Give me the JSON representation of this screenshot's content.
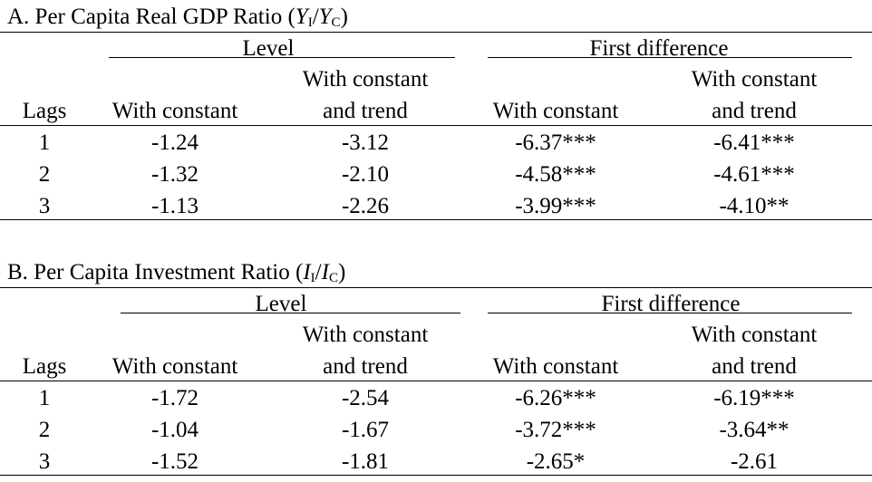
{
  "panels": [
    {
      "title_prefix": "A. Per Capita Real GDP Ratio (",
      "ratio_num": "Y",
      "ratio_num_sub": "I",
      "ratio_den": "Y",
      "ratio_den_sub": "C",
      "title_suffix": ")",
      "group_level": "Level",
      "group_first_diff": "First difference",
      "col_lags": "Lags",
      "col_with_constant": "With constant",
      "col_with_constant_and_trend_line1": "With constant",
      "col_with_constant_and_trend_line2": "and trend",
      "rows": [
        {
          "lag": "1",
          "level_c": "-1.24",
          "level_ct": "-3.12",
          "fd_c": "-6.37***",
          "fd_ct": "-6.41***"
        },
        {
          "lag": "2",
          "level_c": "-1.32",
          "level_ct": "-2.10",
          "fd_c": "-4.58***",
          "fd_ct": "-4.61***"
        },
        {
          "lag": "3",
          "level_c": "-1.13",
          "level_ct": "-2.26",
          "fd_c": "-3.99***",
          "fd_ct": "-4.10**"
        }
      ]
    },
    {
      "title_prefix": "B. Per Capita Investment Ratio (",
      "ratio_num": "I",
      "ratio_num_sub": "I",
      "ratio_den": "I",
      "ratio_den_sub": "C",
      "title_suffix": ")",
      "group_level": "Level",
      "group_first_diff": "First difference",
      "col_lags": "Lags",
      "col_with_constant": "With constant",
      "col_with_constant_and_trend_line1": "With constant",
      "col_with_constant_and_trend_line2": "and trend",
      "rows": [
        {
          "lag": "1",
          "level_c": "-1.72",
          "level_ct": "-2.54",
          "fd_c": "-6.26***",
          "fd_ct": "-6.19***"
        },
        {
          "lag": "2",
          "level_c": "-1.04",
          "level_ct": "-1.67",
          "fd_c": "-3.72***",
          "fd_ct": "-3.64**"
        },
        {
          "lag": "3",
          "level_c": "-1.52",
          "level_ct": "-1.81",
          "fd_c": "-2.65*",
          "fd_ct": "-2.61"
        }
      ]
    }
  ]
}
